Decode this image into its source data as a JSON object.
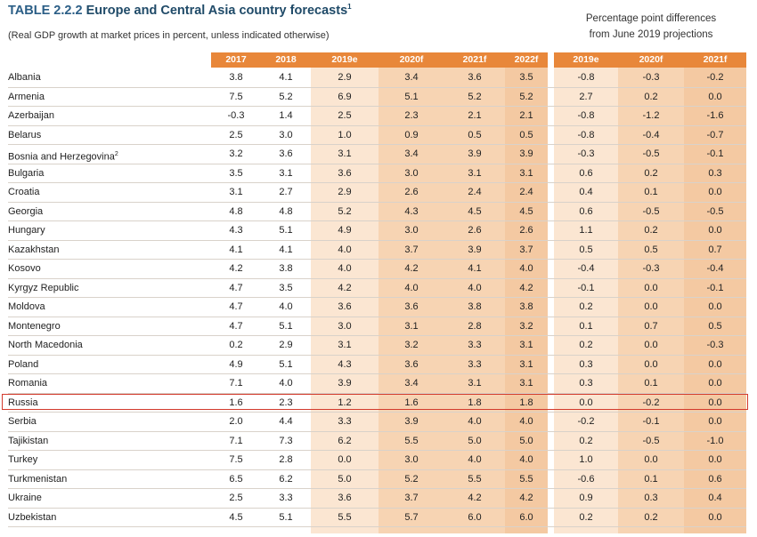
{
  "title": {
    "number": "TABLE 2.2.2",
    "text": "Europe and Central Asia country forecasts",
    "footnote": "1"
  },
  "subtitle": "(Real GDP growth at market prices in percent, unless indicated otherwise)",
  "right_header": {
    "line1": "Percentage point differences",
    "line2": "from June 2019 projections"
  },
  "columns": [
    "2017",
    "2018",
    "2019e",
    "2020f",
    "2021f",
    "2022f"
  ],
  "diff_columns": [
    "2019e",
    "2020f",
    "2021f"
  ],
  "rows": [
    {
      "name": "Albania",
      "sup": "",
      "values": [
        "3.8",
        "4.1",
        "2.9",
        "3.4",
        "3.6",
        "3.5"
      ],
      "diffs": [
        "-0.8",
        "-0.3",
        "-0.2"
      ]
    },
    {
      "name": "Armenia",
      "sup": "",
      "values": [
        "7.5",
        "5.2",
        "6.9",
        "5.1",
        "5.2",
        "5.2"
      ],
      "diffs": [
        "2.7",
        "0.2",
        "0.0"
      ]
    },
    {
      "name": "Azerbaijan",
      "sup": "",
      "values": [
        "-0.3",
        "1.4",
        "2.5",
        "2.3",
        "2.1",
        "2.1"
      ],
      "diffs": [
        "-0.8",
        "-1.2",
        "-1.6"
      ]
    },
    {
      "name": "Belarus",
      "sup": "",
      "values": [
        "2.5",
        "3.0",
        "1.0",
        "0.9",
        "0.5",
        "0.5"
      ],
      "diffs": [
        "-0.8",
        "-0.4",
        "-0.7"
      ]
    },
    {
      "name": "Bosnia and Herzegovina",
      "sup": "2",
      "values": [
        "3.2",
        "3.6",
        "3.1",
        "3.4",
        "3.9",
        "3.9"
      ],
      "diffs": [
        "-0.3",
        "-0.5",
        "-0.1"
      ]
    },
    {
      "name": "Bulgaria",
      "sup": "",
      "values": [
        "3.5",
        "3.1",
        "3.6",
        "3.0",
        "3.1",
        "3.1"
      ],
      "diffs": [
        "0.6",
        "0.2",
        "0.3"
      ]
    },
    {
      "name": "Croatia",
      "sup": "",
      "values": [
        "3.1",
        "2.7",
        "2.9",
        "2.6",
        "2.4",
        "2.4"
      ],
      "diffs": [
        "0.4",
        "0.1",
        "0.0"
      ]
    },
    {
      "name": "Georgia",
      "sup": "",
      "values": [
        "4.8",
        "4.8",
        "5.2",
        "4.3",
        "4.5",
        "4.5"
      ],
      "diffs": [
        "0.6",
        "-0.5",
        "-0.5"
      ]
    },
    {
      "name": "Hungary",
      "sup": "",
      "values": [
        "4.3",
        "5.1",
        "4.9",
        "3.0",
        "2.6",
        "2.6"
      ],
      "diffs": [
        "1.1",
        "0.2",
        "0.0"
      ]
    },
    {
      "name": "Kazakhstan",
      "sup": "",
      "values": [
        "4.1",
        "4.1",
        "4.0",
        "3.7",
        "3.9",
        "3.7"
      ],
      "diffs": [
        "0.5",
        "0.5",
        "0.7"
      ]
    },
    {
      "name": "Kosovo",
      "sup": "",
      "values": [
        "4.2",
        "3.8",
        "4.0",
        "4.2",
        "4.1",
        "4.0"
      ],
      "diffs": [
        "-0.4",
        "-0.3",
        "-0.4"
      ]
    },
    {
      "name": "Kyrgyz Republic",
      "sup": "",
      "values": [
        "4.7",
        "3.5",
        "4.2",
        "4.0",
        "4.0",
        "4.2"
      ],
      "diffs": [
        "-0.1",
        "0.0",
        "-0.1"
      ]
    },
    {
      "name": "Moldova",
      "sup": "",
      "values": [
        "4.7",
        "4.0",
        "3.6",
        "3.6",
        "3.8",
        "3.8"
      ],
      "diffs": [
        "0.2",
        "0.0",
        "0.0"
      ]
    },
    {
      "name": "Montenegro",
      "sup": "",
      "values": [
        "4.7",
        "5.1",
        "3.0",
        "3.1",
        "2.8",
        "3.2"
      ],
      "diffs": [
        "0.1",
        "0.7",
        "0.5"
      ]
    },
    {
      "name": "North Macedonia",
      "sup": "",
      "values": [
        "0.2",
        "2.9",
        "3.1",
        "3.2",
        "3.3",
        "3.1"
      ],
      "diffs": [
        "0.2",
        "0.0",
        "-0.3"
      ]
    },
    {
      "name": "Poland",
      "sup": "",
      "values": [
        "4.9",
        "5.1",
        "4.3",
        "3.6",
        "3.3",
        "3.1"
      ],
      "diffs": [
        "0.3",
        "0.0",
        "0.0"
      ]
    },
    {
      "name": "Romania",
      "sup": "",
      "values": [
        "7.1",
        "4.0",
        "3.9",
        "3.4",
        "3.1",
        "3.1"
      ],
      "diffs": [
        "0.3",
        "0.1",
        "0.0"
      ]
    },
    {
      "name": "Russia",
      "sup": "",
      "values": [
        "1.6",
        "2.3",
        "1.2",
        "1.6",
        "1.8",
        "1.8"
      ],
      "diffs": [
        "0.0",
        "-0.2",
        "0.0"
      ]
    },
    {
      "name": "Serbia",
      "sup": "",
      "values": [
        "2.0",
        "4.4",
        "3.3",
        "3.9",
        "4.0",
        "4.0"
      ],
      "diffs": [
        "-0.2",
        "-0.1",
        "0.0"
      ]
    },
    {
      "name": "Tajikistan",
      "sup": "",
      "values": [
        "7.1",
        "7.3",
        "6.2",
        "5.5",
        "5.0",
        "5.0"
      ],
      "diffs": [
        "0.2",
        "-0.5",
        "-1.0"
      ]
    },
    {
      "name": "Turkey",
      "sup": "",
      "values": [
        "7.5",
        "2.8",
        "0.0",
        "3.0",
        "4.0",
        "4.0"
      ],
      "diffs": [
        "1.0",
        "0.0",
        "0.0"
      ]
    },
    {
      "name": "Turkmenistan",
      "sup": "",
      "values": [
        "6.5",
        "6.2",
        "5.0",
        "5.2",
        "5.5",
        "5.5"
      ],
      "diffs": [
        "-0.6",
        "0.1",
        "0.6"
      ]
    },
    {
      "name": "Ukraine",
      "sup": "",
      "values": [
        "2.5",
        "3.3",
        "3.6",
        "3.7",
        "4.2",
        "4.2"
      ],
      "diffs": [
        "0.9",
        "0.3",
        "0.4"
      ]
    },
    {
      "name": "Uzbekistan",
      "sup": "",
      "values": [
        "4.5",
        "5.1",
        "5.5",
        "5.7",
        "6.0",
        "6.0"
      ],
      "diffs": [
        "0.2",
        "0.2",
        "0.0"
      ]
    }
  ],
  "highlighted_row": "Russia",
  "colors": {
    "title": "#1f4a68",
    "header_bg": "#e8873a",
    "highlight_border": "#d33a2c"
  }
}
